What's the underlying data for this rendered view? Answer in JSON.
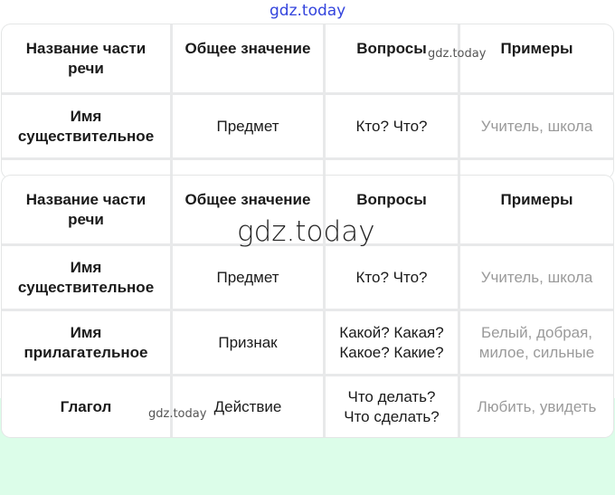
{
  "watermark": "gdz.today",
  "headers": [
    "Название части\nречи",
    "Общее значение",
    "Вопросы",
    "Примеры"
  ],
  "rows": [
    {
      "name": "Имя\nсуществительное",
      "meaning": "Предмет",
      "questions": "Кто? Что?",
      "examples": "Учитель, школа"
    },
    {
      "name": "Имя\nприлагательное",
      "meaning": "Признак",
      "questions": "Какой? Какая?\nКакое? Какие?",
      "examples": "Белый, добрая,\nмилое, сильные"
    },
    {
      "name": "Глагол",
      "meaning": "Действие",
      "questions": "Что делать?\nЧто сделать?",
      "examples": "Любить, увидеть"
    }
  ],
  "colors": {
    "background_bottom": "#dcfde9",
    "border": "#e8e9ea",
    "example_text": "#9a9a9a"
  }
}
